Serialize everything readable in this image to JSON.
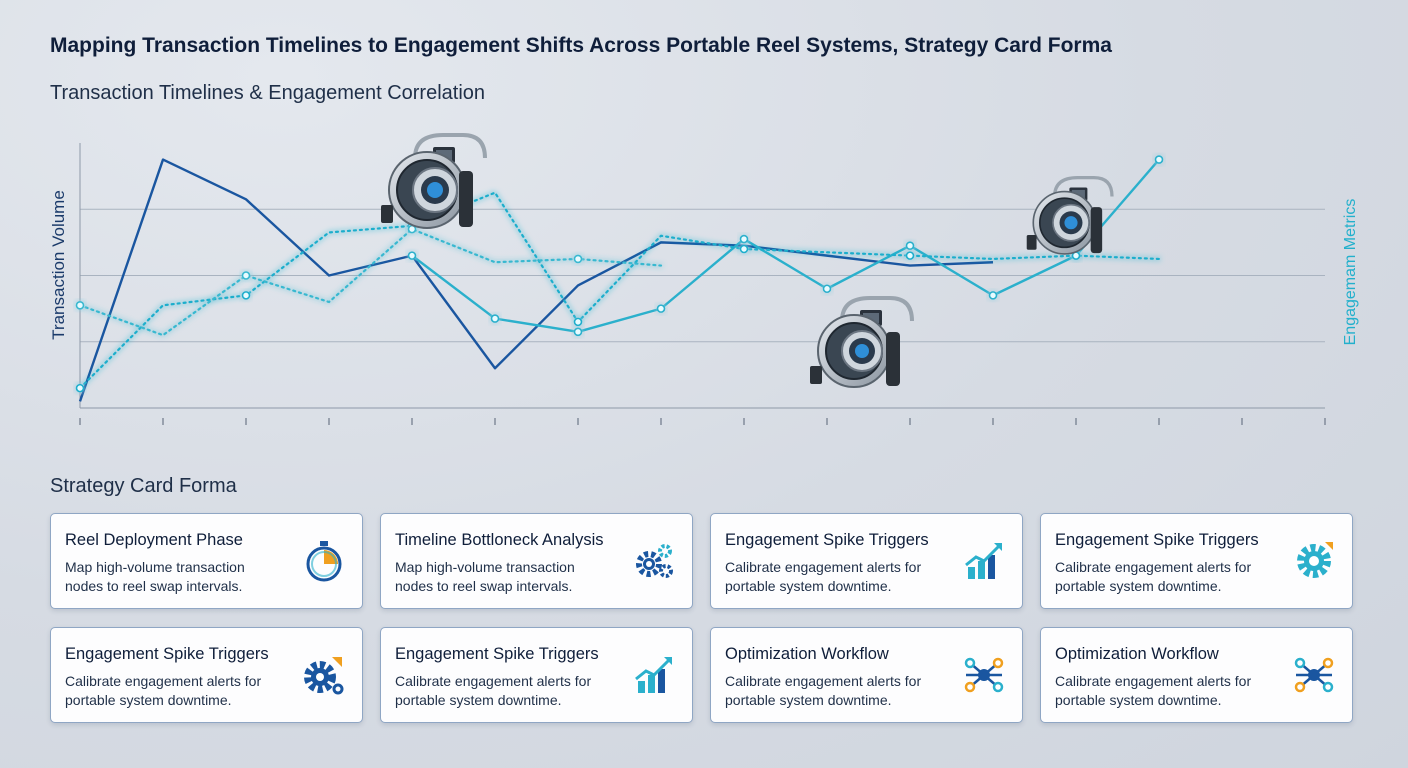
{
  "header": {
    "title": "Mapping Transaction Timelines to Engagement Shifts Across Portable Reel Systems, Strategy Card Forma",
    "subtitle": "Transaction Timelines & Engagement Correlation"
  },
  "chart_data": {
    "type": "line",
    "ylabel_left": "Transaction Volume",
    "ylabel_right": "Engagemam Metrics",
    "x": [
      0,
      1,
      2,
      3,
      4,
      5,
      6,
      7,
      8,
      9,
      10,
      11,
      12,
      13,
      14,
      15
    ],
    "ylim": [
      0,
      4
    ],
    "grid": true,
    "series": [
      {
        "style": "solid",
        "color": "#1a56a0",
        "values": [
          0.1,
          3.75,
          3.15,
          2.0,
          2.3,
          0.6,
          1.85,
          2.5,
          2.45,
          2.3,
          2.15,
          2.2,
          null,
          null,
          null,
          null
        ]
      },
      {
        "style": "solid",
        "color": "#2bb0cc",
        "values": [
          null,
          null,
          null,
          null,
          2.3,
          1.35,
          1.15,
          1.5,
          2.55,
          1.8,
          2.45,
          1.7,
          2.3,
          3.75,
          null,
          null
        ]
      },
      {
        "style": "dotted",
        "color": "#1faecc",
        "values": [
          0.3,
          1.55,
          1.7,
          2.65,
          2.75,
          3.25,
          1.3,
          2.6,
          2.4,
          2.35,
          2.3,
          2.25,
          2.3,
          2.25,
          null,
          null
        ]
      },
      {
        "style": "dotted",
        "color": "#38b8d0",
        "values": [
          1.55,
          1.1,
          2.0,
          1.6,
          2.7,
          2.2,
          2.25,
          2.15,
          null,
          null,
          null,
          null,
          null,
          null,
          null,
          null
        ]
      }
    ]
  },
  "strategy": {
    "heading": "Strategy Card Forma",
    "cards": [
      {
        "title": "Reel Deployment Phase",
        "desc": "Map high-volume transaction nodes to reel swap intervals.",
        "icon": "stopwatch-icon"
      },
      {
        "title": "Timeline Bottloneck Analysis",
        "desc": "Map high-volume transaction nodes to reel swap intervals.",
        "icon": "gears-icon"
      },
      {
        "title": "Engagement Spike Triggers",
        "desc": "Calibrate engagement alerts for portable system downtime.",
        "icon": "growth-chart-icon"
      },
      {
        "title": "Engagement Spike Triggers",
        "desc": "Calibrate engagement alerts for portable system downtime.",
        "icon": "gear-icon"
      },
      {
        "title": "Engagement Spike Triggers",
        "desc": "Calibrate engagement alerts for portable system downtime.",
        "icon": "gear-arrow-icon"
      },
      {
        "title": "Engagement Spike Triggers",
        "desc": "Calibrate engagement alerts for portable system downtime.",
        "icon": "growth-chart-icon"
      },
      {
        "title": "Optimization Workflow",
        "desc": "Calibrate engagement alerts for portable system downtime.",
        "icon": "network-icon"
      },
      {
        "title": "Optimization Workflow",
        "desc": "Calibrate engagement alerts for portable system downtime.",
        "icon": "network-icon"
      }
    ]
  },
  "colors": {
    "navy": "#1a56a0",
    "teal": "#2bb0cc",
    "orange": "#f0a020"
  }
}
